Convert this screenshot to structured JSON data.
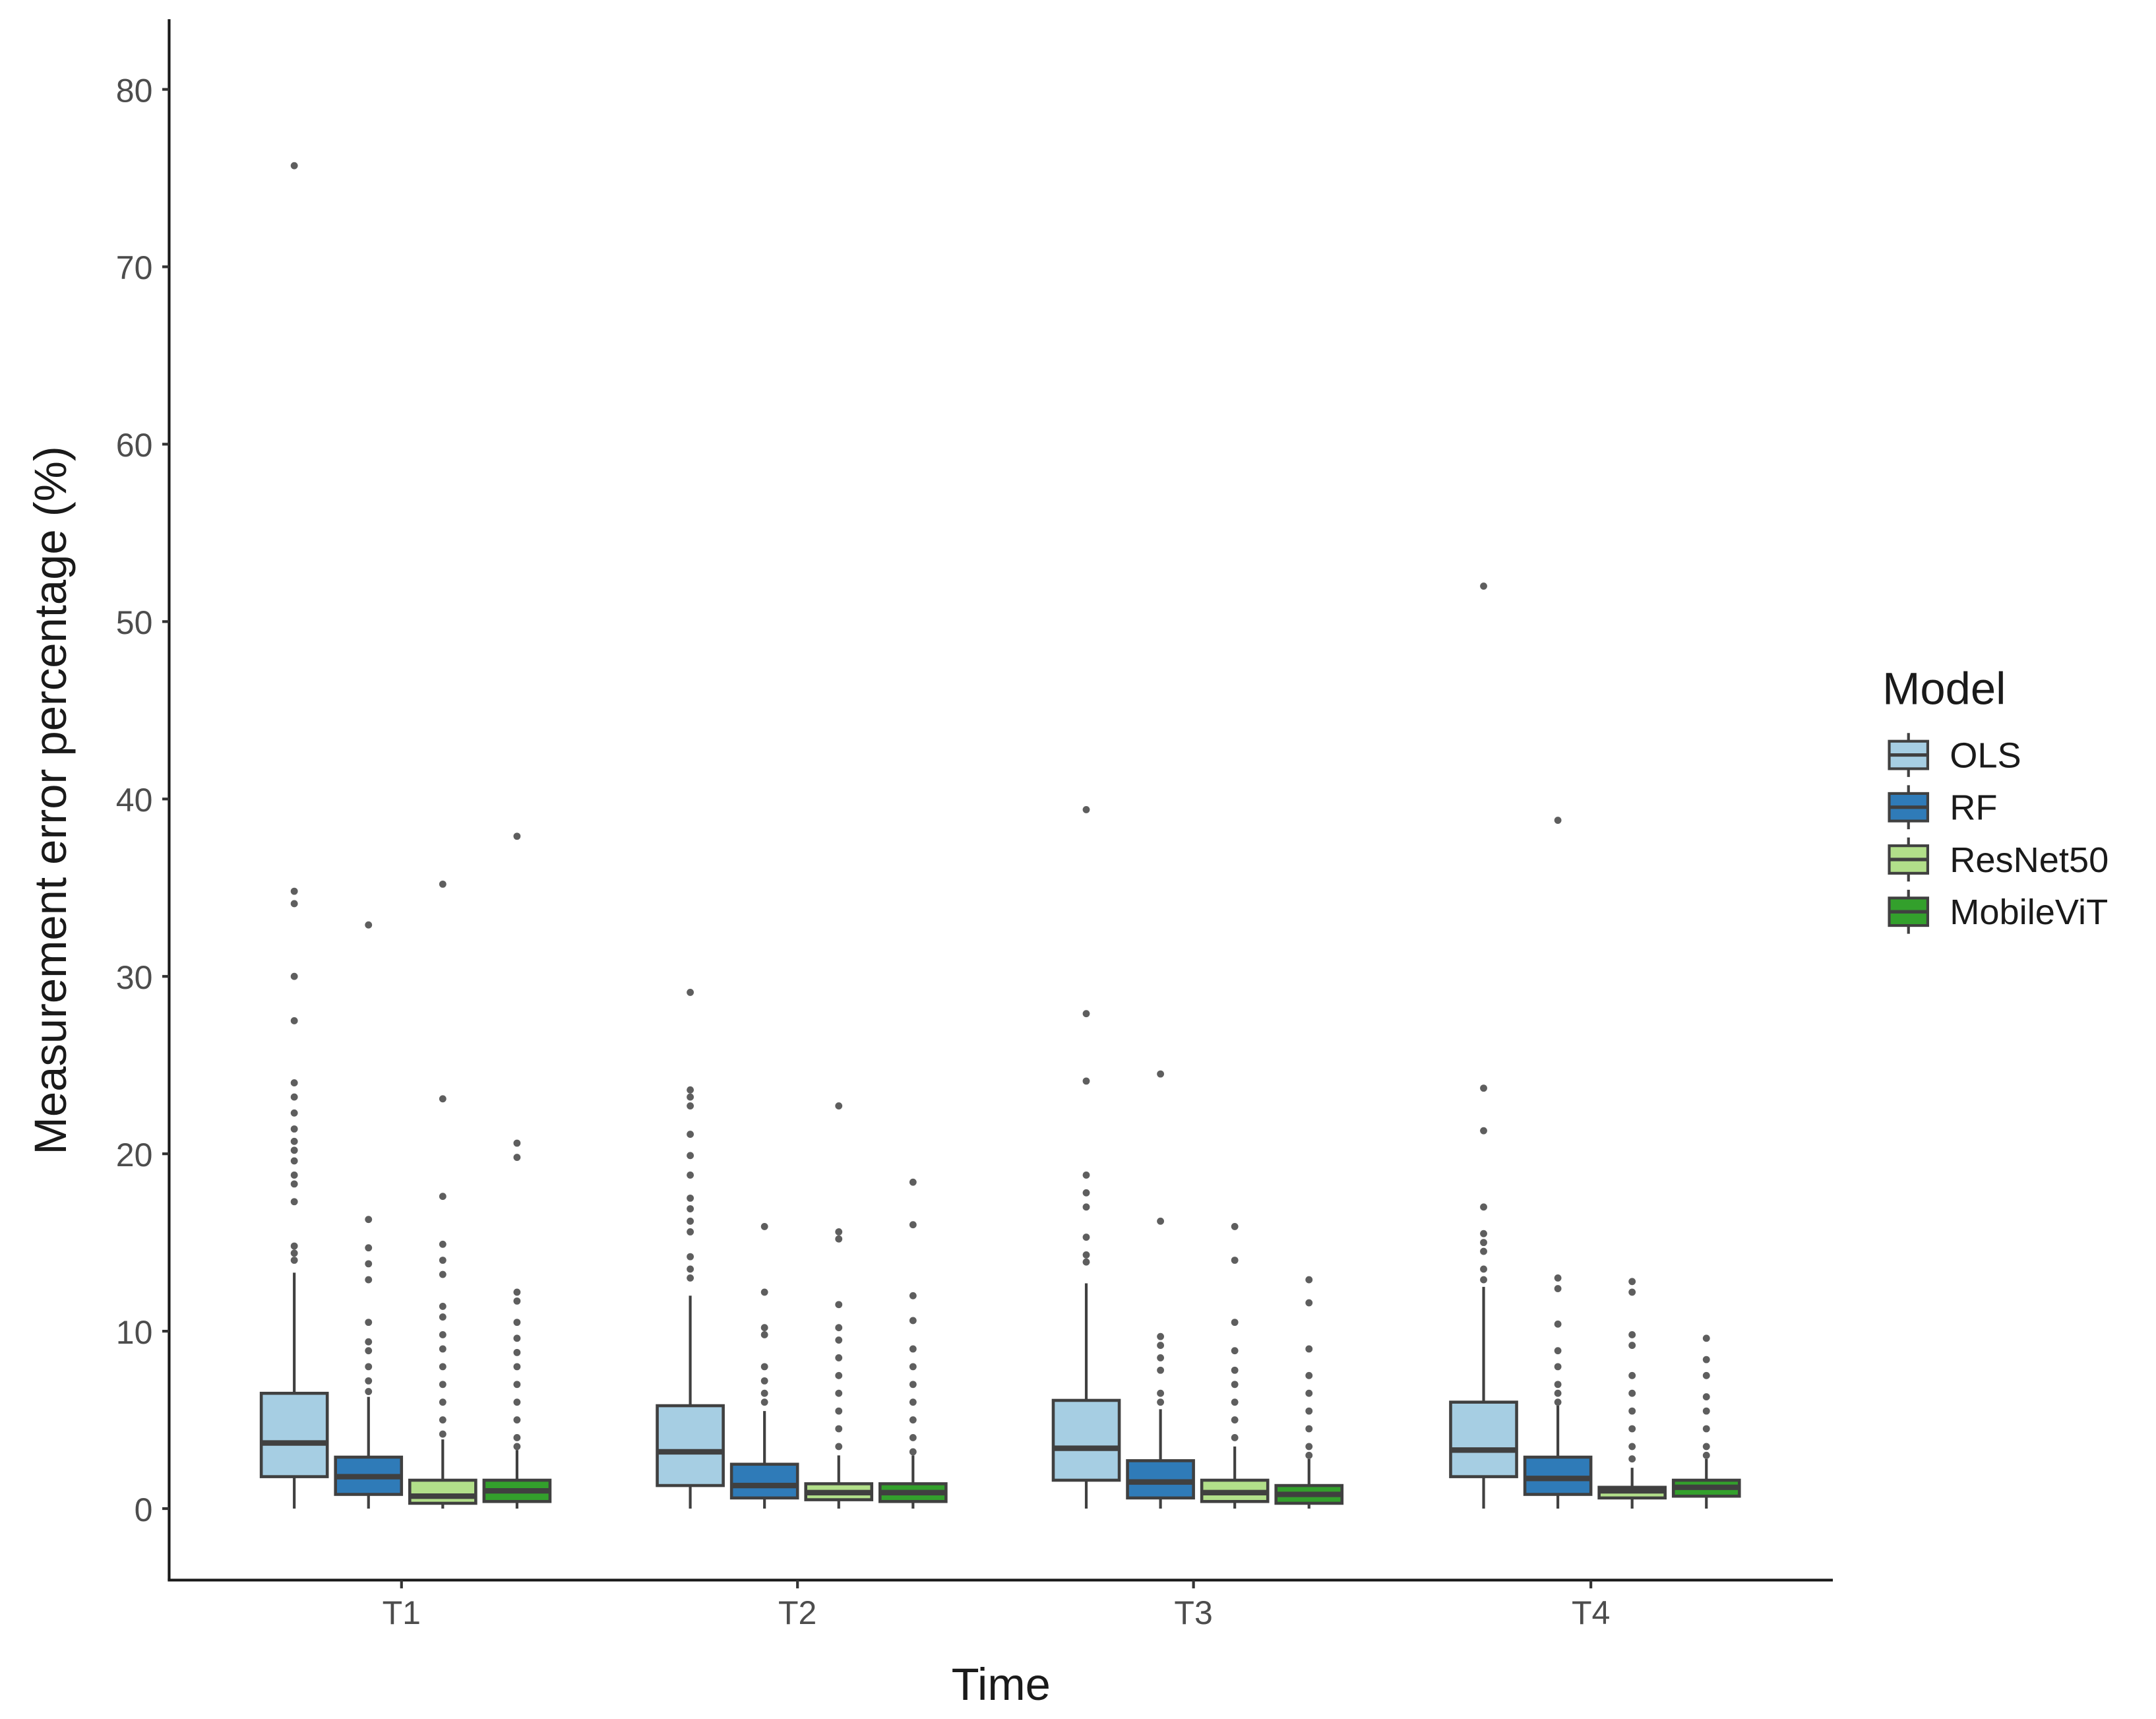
{
  "chart_data": {
    "type": "boxplot",
    "xlabel": "Time",
    "ylabel": "Measurement error percentage (%)",
    "ylim": [
      -4,
      84
    ],
    "yticks": [
      0,
      10,
      20,
      30,
      40,
      50,
      60,
      70,
      80
    ],
    "grid": false,
    "legend": {
      "title": "Model",
      "placement": "right"
    },
    "categories": [
      "T1",
      "T2",
      "T3",
      "T4"
    ],
    "series": [
      {
        "name": "OLS",
        "color": "#a6cee3",
        "boxes": [
          {
            "low": 0,
            "q1": 1.8,
            "median": 3.7,
            "q3": 6.5,
            "high": 13.3,
            "outliers": [
              75.7,
              34.8,
              34.1,
              30.0,
              27.5,
              24.0,
              23.2,
              22.3,
              21.4,
              20.7,
              20.2,
              19.6,
              18.8,
              18.3,
              17.3,
              14.8,
              14.4,
              14.0
            ]
          },
          {
            "low": 0,
            "q1": 1.3,
            "median": 3.2,
            "q3": 5.8,
            "high": 12.0,
            "outliers": [
              29.1,
              23.6,
              23.2,
              22.7,
              21.1,
              19.9,
              18.8,
              17.5,
              16.9,
              16.2,
              15.6,
              14.2,
              13.5,
              13.0
            ]
          },
          {
            "low": 0,
            "q1": 1.6,
            "median": 3.4,
            "q3": 6.1,
            "high": 12.7,
            "outliers": [
              39.4,
              27.9,
              24.1,
              18.8,
              17.8,
              17.0,
              15.3,
              14.3,
              13.9
            ]
          },
          {
            "low": 0,
            "q1": 1.8,
            "median": 3.3,
            "q3": 6.0,
            "high": 12.5,
            "outliers": [
              52.0,
              23.7,
              21.3,
              17.0,
              15.5,
              15.0,
              14.5,
              13.5,
              12.9
            ]
          }
        ]
      },
      {
        "name": "RF",
        "color": "#2f7bb8",
        "boxes": [
          {
            "low": 0,
            "q1": 0.8,
            "median": 1.8,
            "q3": 2.9,
            "high": 6.3,
            "outliers": [
              32.9,
              16.3,
              14.7,
              13.8,
              12.9,
              10.5,
              9.4,
              8.9,
              8.0,
              7.2,
              6.6
            ]
          },
          {
            "low": 0,
            "q1": 0.6,
            "median": 1.3,
            "q3": 2.5,
            "high": 5.5,
            "outliers": [
              15.9,
              12.2,
              10.2,
              9.8,
              8.0,
              7.2,
              6.5,
              6.0
            ]
          },
          {
            "low": 0,
            "q1": 0.6,
            "median": 1.5,
            "q3": 2.7,
            "high": 5.6,
            "outliers": [
              24.5,
              16.2,
              9.7,
              9.2,
              8.5,
              7.8,
              6.5,
              6.0
            ]
          },
          {
            "low": 0,
            "q1": 0.8,
            "median": 1.7,
            "q3": 2.9,
            "high": 5.8,
            "outliers": [
              38.8,
              13.0,
              12.4,
              10.4,
              8.9,
              8.0,
              7.0,
              6.5,
              6.0
            ]
          }
        ]
      },
      {
        "name": "ResNet50",
        "color": "#b2df8a",
        "boxes": [
          {
            "low": 0,
            "q1": 0.3,
            "median": 0.7,
            "q3": 1.6,
            "high": 3.9,
            "outliers": [
              35.2,
              23.1,
              17.6,
              14.9,
              14.0,
              13.2,
              11.4,
              10.8,
              9.8,
              9.0,
              8.0,
              7.0,
              6.0,
              5.0,
              4.2
            ]
          },
          {
            "low": 0,
            "q1": 0.5,
            "median": 0.9,
            "q3": 1.4,
            "high": 3.0,
            "outliers": [
              22.7,
              15.6,
              15.2,
              11.5,
              10.2,
              9.5,
              8.5,
              7.5,
              6.5,
              5.5,
              4.5,
              3.5
            ]
          },
          {
            "low": 0,
            "q1": 0.4,
            "median": 0.9,
            "q3": 1.6,
            "high": 3.5,
            "outliers": [
              15.9,
              14.0,
              10.5,
              8.9,
              7.8,
              7.0,
              6.0,
              5.0,
              4.0
            ]
          },
          {
            "low": 0,
            "q1": 0.6,
            "median": 1.0,
            "q3": 1.2,
            "high": 2.3,
            "outliers": [
              12.8,
              12.2,
              9.8,
              9.2,
              7.5,
              6.5,
              5.5,
              4.5,
              3.5,
              2.8
            ]
          }
        ]
      },
      {
        "name": "MobileViT",
        "color": "#33a02c",
        "boxes": [
          {
            "low": 0,
            "q1": 0.4,
            "median": 1.0,
            "q3": 1.6,
            "high": 3.3,
            "outliers": [
              37.9,
              20.6,
              19.8,
              12.2,
              11.7,
              10.5,
              9.6,
              8.8,
              8.0,
              7.0,
              6.0,
              5.0,
              4.0,
              3.5
            ]
          },
          {
            "low": 0,
            "q1": 0.4,
            "median": 0.9,
            "q3": 1.4,
            "high": 3.0,
            "outliers": [
              18.4,
              16.0,
              12.0,
              10.6,
              9.0,
              8.0,
              7.0,
              6.0,
              5.0,
              4.0,
              3.2
            ]
          },
          {
            "low": 0,
            "q1": 0.3,
            "median": 0.8,
            "q3": 1.3,
            "high": 2.8,
            "outliers": [
              12.9,
              11.6,
              9.0,
              7.5,
              6.5,
              5.5,
              4.5,
              3.5,
              3.0
            ]
          },
          {
            "low": 0,
            "q1": 0.7,
            "median": 1.2,
            "q3": 1.6,
            "high": 2.8,
            "outliers": [
              9.6,
              8.4,
              7.5,
              6.3,
              5.5,
              4.5,
              3.5,
              3.0
            ]
          }
        ]
      }
    ]
  }
}
